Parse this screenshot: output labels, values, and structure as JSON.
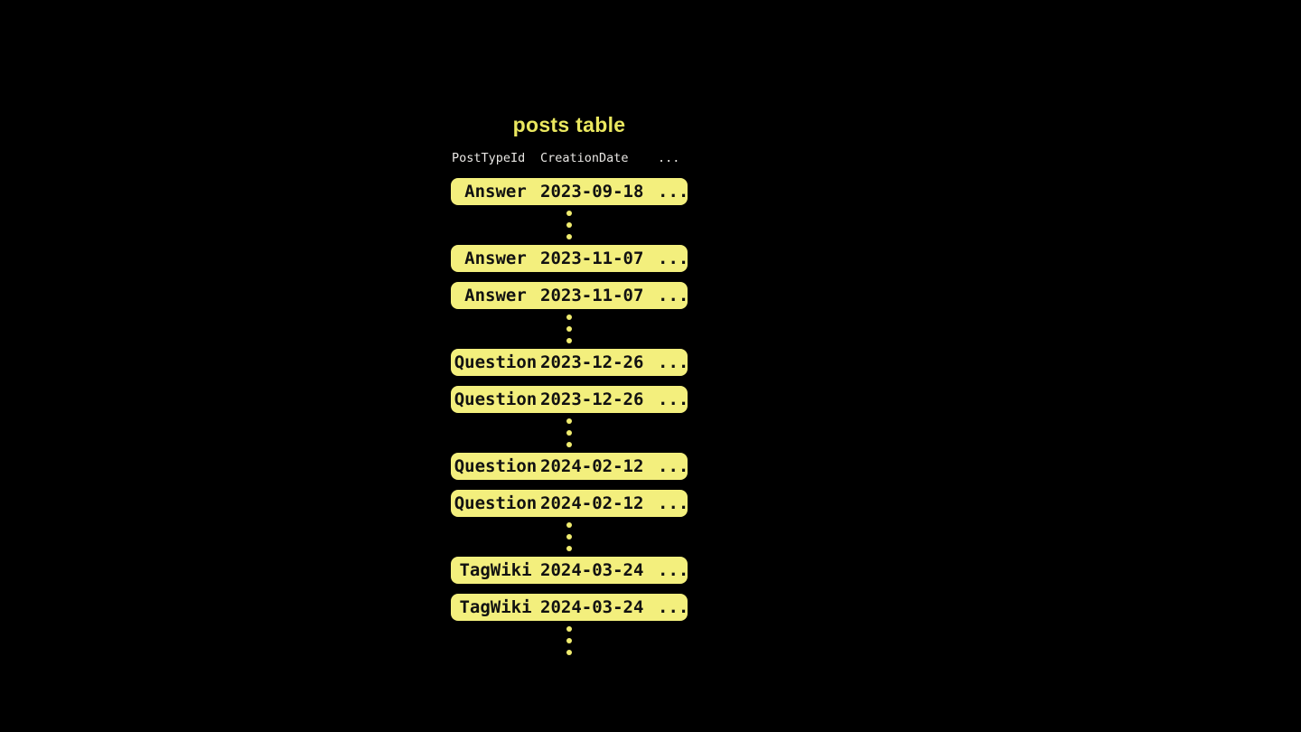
{
  "title": "posts table",
  "header": {
    "col_post_type": "PostTypeId",
    "col_creation_date": "CreationDate",
    "col_more": "..."
  },
  "labels": {
    "ellipsis": "..."
  },
  "rows": [
    {
      "type": "Answer",
      "date": "2023-09-18"
    },
    {
      "type": "Answer",
      "date": "2023-11-07"
    },
    {
      "type": "Answer",
      "date": "2023-11-07"
    },
    {
      "type": "Question",
      "date": "2023-12-26"
    },
    {
      "type": "Question",
      "date": "2023-12-26"
    },
    {
      "type": "Question",
      "date": "2024-02-12"
    },
    {
      "type": "Question",
      "date": "2024-02-12"
    },
    {
      "type": "TagWiki",
      "date": "2024-03-24"
    },
    {
      "type": "TagWiki",
      "date": "2024-03-24"
    }
  ],
  "colors": {
    "background": "#000000",
    "row_fill": "#f3ef7d",
    "dot_fill": "#f0ec6f",
    "title_text": "#eae75f",
    "header_text": "#e9e7e4",
    "row_text": "#111111"
  }
}
